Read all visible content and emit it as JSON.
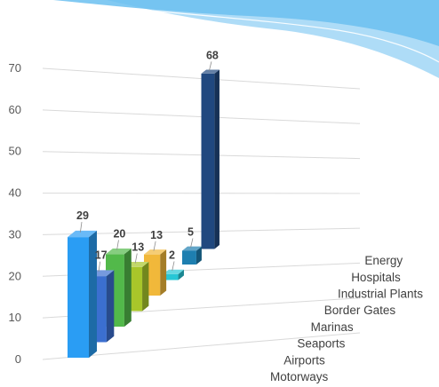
{
  "chart_data": {
    "type": "bar",
    "title": "",
    "xlabel": "",
    "ylabel": "",
    "ylim": [
      0,
      70
    ],
    "yticks": [
      "0",
      "10",
      "20",
      "30",
      "40",
      "50",
      "60",
      "70"
    ],
    "categories": [
      "Motorways",
      "Airports",
      "Seaports",
      "Marinas",
      "Border Gates",
      "Industrial Plants",
      "Hospitals",
      "Energy"
    ],
    "values": [
      29,
      17,
      20,
      13,
      13,
      2,
      5,
      68
    ],
    "data_labels": [
      "29",
      "17",
      "20",
      "13",
      "13",
      "2",
      "5",
      "68"
    ],
    "grid": true,
    "legend": "none",
    "colors": [
      "#2a9df4",
      "#3b6fd0",
      "#52b94a",
      "#a8c62a",
      "#f1b83a",
      "#27c7d6",
      "#1e7fb0",
      "#20487f"
    ],
    "style": "3d-perspective"
  },
  "decoration": {
    "wave_color": "#6bbff0"
  }
}
